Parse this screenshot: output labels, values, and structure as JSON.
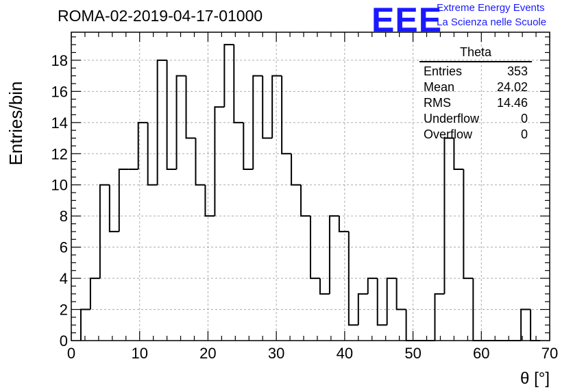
{
  "title": "ROMA-02-2019-04-17-01000",
  "logo": {
    "mark": "EEE",
    "line1": "Extreme Energy Events",
    "line2": "La Scienza nelle Scuole"
  },
  "stats": {
    "name": "Theta",
    "rows": [
      {
        "label": "Entries",
        "value": "353"
      },
      {
        "label": "Mean",
        "value": "24.02"
      },
      {
        "label": "RMS",
        "value": "14.46"
      },
      {
        "label": "Underflow",
        "value": "0"
      },
      {
        "label": "Overflow",
        "value": "0"
      }
    ]
  },
  "chart_data": {
    "type": "histogram",
    "xlabel": "θ [°]",
    "ylabel": "Entries/bin",
    "xlim": [
      0,
      70
    ],
    "ylim": [
      0,
      19.8
    ],
    "grid": true,
    "bin_width": 1.4,
    "bin_start": 1.4,
    "x_ticks": [
      0,
      10,
      20,
      30,
      40,
      50,
      60,
      70
    ],
    "y_ticks": [
      0,
      2,
      4,
      6,
      8,
      10,
      12,
      14,
      16,
      18
    ],
    "values": [
      2,
      4,
      10,
      7,
      11,
      11,
      14,
      10,
      18,
      11,
      17,
      13,
      10,
      8,
      15,
      19,
      14,
      11,
      17,
      13,
      17,
      12,
      10,
      8,
      4,
      3,
      8,
      7,
      1,
      3,
      4,
      1,
      4,
      2,
      0,
      0,
      0,
      3,
      13,
      11,
      4,
      0,
      0,
      0,
      0,
      0,
      2,
      0
    ]
  }
}
